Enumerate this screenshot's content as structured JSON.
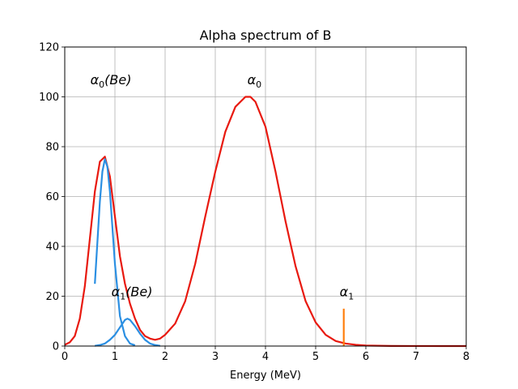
{
  "chart_data": {
    "type": "line",
    "title": "Alpha spectrum of B",
    "xlabel": "Energy (MeV)",
    "ylabel": "",
    "xlim": [
      0,
      8
    ],
    "ylim": [
      0,
      120
    ],
    "xticks": [
      "0",
      "1",
      "2",
      "3",
      "4",
      "5",
      "6",
      "7",
      "8"
    ],
    "yticks": [
      "0",
      "20",
      "40",
      "60",
      "80",
      "100",
      "120"
    ],
    "grid": true,
    "legend": "none",
    "annotations": [
      {
        "base": "α",
        "sub": "0",
        "suffix": "(Be)",
        "x": 0.92,
        "y": 105
      },
      {
        "base": "α",
        "sub": "1",
        "suffix": "(Be)",
        "x": 1.34,
        "y": 20
      },
      {
        "base": "α",
        "sub": "0",
        "suffix": "",
        "x": 3.78,
        "y": 105
      },
      {
        "base": "α",
        "sub": "1",
        "suffix": "",
        "x": 5.62,
        "y": 20
      }
    ],
    "series": [
      {
        "color": "#e8190f",
        "x": [
          0.0,
          0.1,
          0.2,
          0.3,
          0.4,
          0.5,
          0.6,
          0.7,
          0.8,
          0.9,
          1.0,
          1.1,
          1.2,
          1.3,
          1.4,
          1.5,
          1.6,
          1.7,
          1.8,
          1.9,
          2.0,
          2.2,
          2.4,
          2.6,
          2.8,
          3.0,
          3.2,
          3.4,
          3.6,
          3.7,
          3.8,
          4.0,
          4.2,
          4.4,
          4.6,
          4.8,
          5.0,
          5.2,
          5.4,
          5.6,
          5.8,
          6.0,
          6.5,
          7.0,
          7.5,
          8.0
        ],
        "y": [
          0.5,
          1.5,
          4,
          11,
          24,
          43,
          62,
          74,
          76,
          68,
          52,
          36,
          25,
          17,
          11,
          6.5,
          4,
          3,
          2.5,
          3,
          4.5,
          9,
          18,
          33,
          52,
          70,
          86,
          96,
          100,
          100,
          98,
          88,
          70,
          50,
          32,
          18,
          9.5,
          4.5,
          2,
          1,
          0.5,
          0.2,
          0.05,
          0.02,
          0.01,
          0
        ]
      },
      {
        "color": "#2b8fe2",
        "x": [
          0.6,
          0.7,
          0.75,
          0.8,
          0.85,
          0.9,
          1.0,
          1.1,
          1.2,
          1.3,
          1.4
        ],
        "y": [
          25,
          58,
          70,
          75,
          72,
          62,
          33,
          12,
          4,
          1,
          0.3
        ]
      },
      {
        "color": "#2b8fe2",
        "x": [
          0.6,
          0.7,
          0.8,
          0.9,
          1.0,
          1.1,
          1.2,
          1.25,
          1.3,
          1.4,
          1.5,
          1.6,
          1.7,
          1.8,
          1.9
        ],
        "y": [
          0.1,
          0.4,
          1,
          2.5,
          4.5,
          7.5,
          10.5,
          11,
          10.5,
          8,
          5,
          2.5,
          1,
          0.4,
          0.1
        ]
      },
      {
        "color": "#ff7f0e",
        "x": [
          5.56,
          5.56
        ],
        "y": [
          0,
          15
        ]
      }
    ]
  }
}
